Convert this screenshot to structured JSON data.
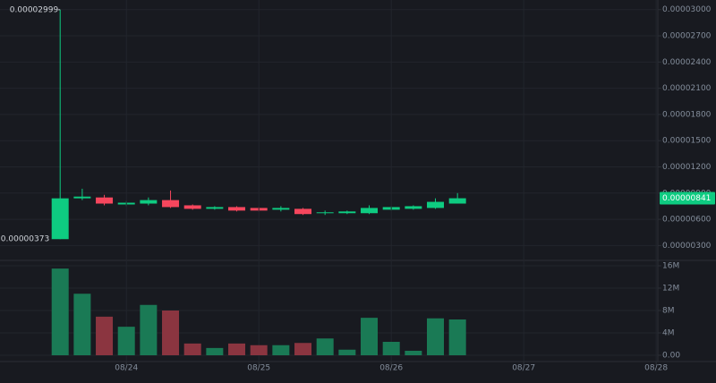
{
  "chart_data": [
    {
      "type": "candlestick",
      "x": [
        12,
        16,
        20,
        24,
        28,
        32,
        36,
        40,
        44,
        48,
        52,
        56,
        60,
        64,
        68,
        72,
        76,
        80,
        84
      ],
      "open": [
        3.73e-06,
        8.4e-06,
        8.5e-06,
        7.7e-06,
        7.8e-06,
        8.2e-06,
        7.6e-06,
        7.2e-06,
        7.4e-06,
        7.3e-06,
        7.1e-06,
        7.2e-06,
        6.7e-06,
        6.7e-06,
        6.7e-06,
        7.1e-06,
        7.2e-06,
        7.3e-06,
        7.8e-06
      ],
      "high": [
        2.999e-05,
        9.5e-06,
        8.8e-06,
        8.1e-06,
        8.5e-06,
        9.3e-06,
        7.7e-06,
        7.5e-06,
        7.5e-06,
        7.4e-06,
        7.5e-06,
        7.3e-06,
        7e-06,
        7e-06,
        7.6e-06,
        7.5e-06,
        7.6e-06,
        8.4e-06,
        9e-06
      ],
      "low": [
        3.73e-06,
        8.2e-06,
        7.6e-06,
        7.5e-06,
        7.6e-06,
        7.3e-06,
        7.1e-06,
        7.1e-06,
        6.9e-06,
        6.9e-06,
        6.9e-06,
        6.5e-06,
        6.5e-06,
        6.6e-06,
        6.6e-06,
        7e-06,
        7.1e-06,
        7.2e-06,
        7.8e-06
      ],
      "close": [
        8.4e-06,
        8.6e-06,
        7.8e-06,
        7.9e-06,
        8.2e-06,
        7.4e-06,
        7.2e-06,
        7.4e-06,
        7e-06,
        7e-06,
        7.3e-06,
        6.6e-06,
        6.8e-06,
        6.9e-06,
        7.3e-06,
        7.4e-06,
        7.5e-06,
        8e-06,
        8.41e-06
      ],
      "up_color": "#0ecb81",
      "down_color": "#f6465d",
      "max_label": "0.00002999",
      "min_label": "0.00000373",
      "last_price": {
        "value": 8.41e-06,
        "label": "0.00000841"
      },
      "xlim": [
        1.1,
        120.3
      ],
      "ylim": [
        1.4e-06,
        3.11e-05
      ],
      "yticks": [
        {
          "value": 3e-06,
          "label": "0.00000300"
        },
        {
          "value": 6e-06,
          "label": "0.00000600"
        },
        {
          "value": 9e-06,
          "label": "0.00000900"
        },
        {
          "value": 1.2e-05,
          "label": "0.00001200"
        },
        {
          "value": 1.5e-05,
          "label": "0.00001500"
        },
        {
          "value": 1.8e-05,
          "label": "0.00001800"
        },
        {
          "value": 2.1e-05,
          "label": "0.00002100"
        },
        {
          "value": 2.4e-05,
          "label": "0.00002400"
        },
        {
          "value": 2.7e-05,
          "label": "0.00002700"
        },
        {
          "value": 3e-05,
          "label": "0.00003000"
        }
      ],
      "grid": true
    },
    {
      "type": "bar",
      "x": [
        12,
        16,
        20,
        24,
        28,
        32,
        36,
        40,
        44,
        48,
        52,
        56,
        60,
        64,
        68,
        72,
        76,
        80,
        84
      ],
      "values": [
        15500000,
        11000000,
        6900000,
        5100000,
        9000000,
        8000000,
        2100000,
        1300000,
        2100000,
        1800000,
        1800000,
        2200000,
        3000000,
        1000000,
        6700000,
        2400000,
        800000,
        6600000,
        6400000
      ],
      "up_color": "#1a7a55",
      "down_color": "#8b3540",
      "xlim": [
        1.1,
        120.3
      ],
      "xticks": [
        {
          "value": 24,
          "label": "08/24"
        },
        {
          "value": 48,
          "label": "08/25"
        },
        {
          "value": 72,
          "label": "08/26"
        },
        {
          "value": 96,
          "label": "08/27"
        },
        {
          "value": 120,
          "label": "08/28"
        }
      ],
      "ylim": [
        -960000,
        16800000
      ],
      "yticks": [
        {
          "value": 0,
          "label": "0.00"
        },
        {
          "value": 4000000,
          "label": "4M"
        },
        {
          "value": 8000000,
          "label": "8M"
        },
        {
          "value": 12000000,
          "label": "12M"
        },
        {
          "value": 16000000,
          "label": "16M"
        }
      ],
      "grid": true
    }
  ]
}
